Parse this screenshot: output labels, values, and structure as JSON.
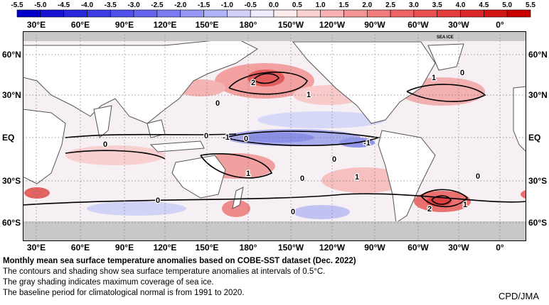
{
  "colorbar": {
    "ticks": [
      "-5.5",
      "-5.0",
      "-4.5",
      "-4.0",
      "-3.5",
      "-3.0",
      "-2.5",
      "-2.0",
      "-1.5",
      "-1.0",
      "-0.5",
      "0.0",
      "0.5",
      "1.0",
      "1.5",
      "2.0",
      "2.5",
      "3.0",
      "3.5",
      "4.0",
      "4.5",
      "5.0",
      "5.5"
    ],
    "colors_negative": [
      "#0000c8",
      "#1414d2",
      "#2828dc",
      "#3c3ce4",
      "#5050ea",
      "#6464ee",
      "#7c7cf2",
      "#9696f5",
      "#b2b2f8",
      "#d0d0fb",
      "#ececfe"
    ],
    "colors_positive": [
      "#feecec",
      "#fbd0d0",
      "#f8b2b2",
      "#f59696",
      "#f27c7c",
      "#ee6464",
      "#ea5050",
      "#e43c3c",
      "#dc2828",
      "#d21414",
      "#c80000"
    ]
  },
  "map": {
    "lon_labels": [
      "30°E",
      "60°E",
      "90°E",
      "120°E",
      "150°E",
      "180°",
      "150°W",
      "120°W",
      "90°W",
      "60°W",
      "30°W",
      "0°"
    ],
    "lat_labels": [
      "60°N",
      "30°N",
      "EQ",
      "30°S",
      "60°S"
    ],
    "sea_ice_label": "SEA ICE",
    "contour_labels": [
      "2",
      "1",
      "0",
      "0",
      "0",
      "0",
      "-1",
      "-1",
      "0",
      "1",
      "0",
      "1",
      "0",
      "1",
      "0",
      "0",
      "2",
      "1",
      "0"
    ],
    "colors": {
      "land": "#ffffff",
      "sea_ice": "#c8c8c8",
      "warm": "#f4a9a9",
      "cool": "#c6c9f1"
    }
  },
  "caption": {
    "title": "Monthly mean sea surface temperature anomalies based on COBE-SST dataset (Dec. 2022)",
    "line1": "The contours and shading show sea surface temperature anomalies at intervals of 0.5°C.",
    "line2": "The gray shading indicates maximum coverage of sea ice.",
    "line3": "The baseline period for climatological normal is from 1991 to 2020."
  },
  "credit": "CPD/JMA"
}
